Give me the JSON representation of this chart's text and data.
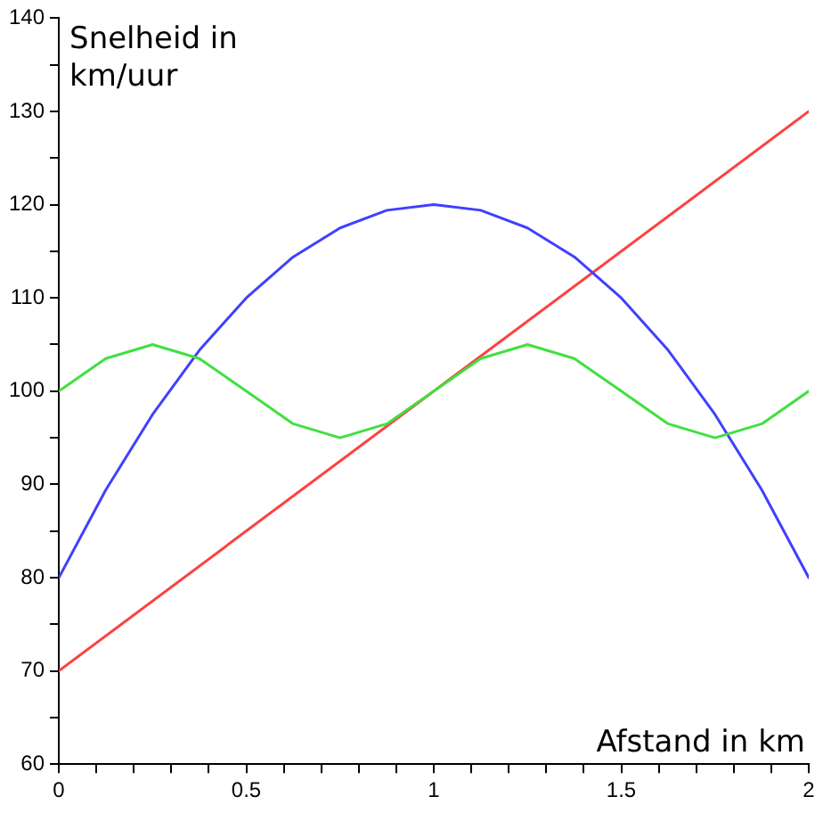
{
  "chart_data": {
    "type": "line",
    "xlabel": "Afstand in km",
    "ylabel": "Snelheid in km/uur",
    "xlim": [
      0,
      2
    ],
    "ylim": [
      60,
      140
    ],
    "xticks": [
      0,
      {
        "value": 0.1,
        "label": null
      },
      {
        "value": 0.2,
        "label": null
      },
      {
        "value": 0.3,
        "label": null
      },
      {
        "value": 0.4,
        "label": null
      },
      0.5,
      {
        "value": 0.6,
        "label": null
      },
      {
        "value": 0.7,
        "label": null
      },
      {
        "value": 0.8,
        "label": null
      },
      {
        "value": 0.9,
        "label": null
      },
      1,
      {
        "value": 1.1,
        "label": null
      },
      {
        "value": 1.2,
        "label": null
      },
      {
        "value": 1.3,
        "label": null
      },
      {
        "value": 1.4,
        "label": null
      },
      1.5,
      {
        "value": 1.6,
        "label": null
      },
      {
        "value": 1.7,
        "label": null
      },
      {
        "value": 1.8,
        "label": null
      },
      {
        "value": 1.9,
        "label": null
      },
      2
    ],
    "yticks": [
      60,
      {
        "value": 65,
        "label": null
      },
      70,
      {
        "value": 75,
        "label": null
      },
      80,
      {
        "value": 85,
        "label": null
      },
      90,
      {
        "value": 95,
        "label": null
      },
      100,
      {
        "value": 105,
        "label": null
      },
      110,
      {
        "value": 115,
        "label": null
      },
      120,
      {
        "value": 125,
        "label": null
      },
      130,
      {
        "value": 135,
        "label": null
      },
      140
    ],
    "grid": false,
    "legend": false,
    "marker": "none",
    "line_style": "solid",
    "series": [
      {
        "color": "#ff4040",
        "x": [
          0,
          2
        ],
        "values": [
          70,
          130
        ]
      },
      {
        "color": "#4040ff",
        "x": [
          0,
          0.125,
          0.25,
          0.375,
          0.5,
          0.625,
          0.75,
          0.875,
          1,
          1.125,
          1.25,
          1.375,
          1.5,
          1.625,
          1.75,
          1.875,
          2
        ],
        "values": [
          80,
          89.4,
          97.5,
          104.4,
          110,
          114.4,
          117.5,
          119.4,
          120,
          119.4,
          117.5,
          114.4,
          110,
          104.4,
          97.5,
          89.4,
          80
        ]
      },
      {
        "color": "#40e040",
        "x": [
          0,
          0.125,
          0.25,
          0.375,
          0.5,
          0.625,
          0.75,
          0.875,
          1,
          1.125,
          1.25,
          1.375,
          1.5,
          1.625,
          1.75,
          1.875,
          2
        ],
        "values": [
          100,
          103.5,
          105,
          103.5,
          100,
          96.5,
          95,
          96.5,
          100,
          103.5,
          105,
          103.5,
          100,
          96.5,
          95,
          96.5,
          100
        ]
      }
    ]
  }
}
